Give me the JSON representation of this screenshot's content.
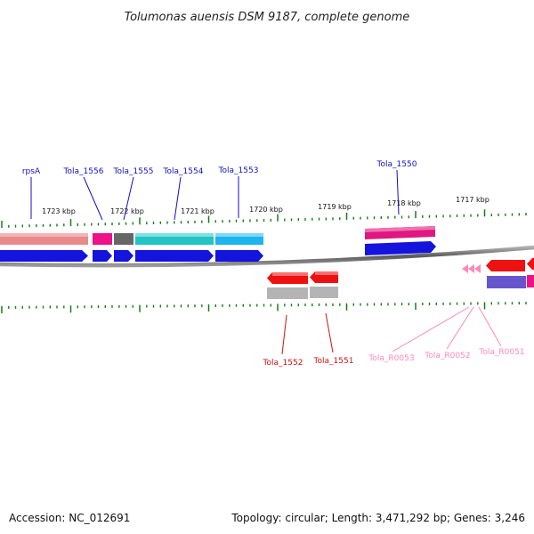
{
  "title": "Tolumonas auensis DSM 9187, complete genome",
  "accession": "Accession: NC_012691",
  "topology_info": "Topology: circular; Length: 3,471,292 bp; Genes: 3,246",
  "kbp_ticks": [
    "1723 kbp",
    "1722 kbp",
    "1721 kbp",
    "1720 kbp",
    "1719 kbp",
    "1718 kbp",
    "1717 kbp"
  ],
  "gene_labels": {
    "rpsA": "rpsA",
    "tola_1556": "Tola_1556",
    "tola_1555": "Tola_1555",
    "tola_1554": "Tola_1554",
    "tola_1553": "Tola_1553",
    "tola_1550": "Tola_1550",
    "tola_1552": "Tola_1552",
    "tola_1551": "Tola_1551",
    "tola_r0053": "Tola_R0053",
    "tola_r0052": "Tola_R0052",
    "tola_r0051": "Tola_R0051"
  },
  "colors": {
    "label_blue": "#1010c0",
    "label_red": "#d01010",
    "label_pink": "#ff88bb",
    "tick_green": "#1a7a1a",
    "cds_blue": "#1414dd",
    "backbone": "#777777"
  }
}
